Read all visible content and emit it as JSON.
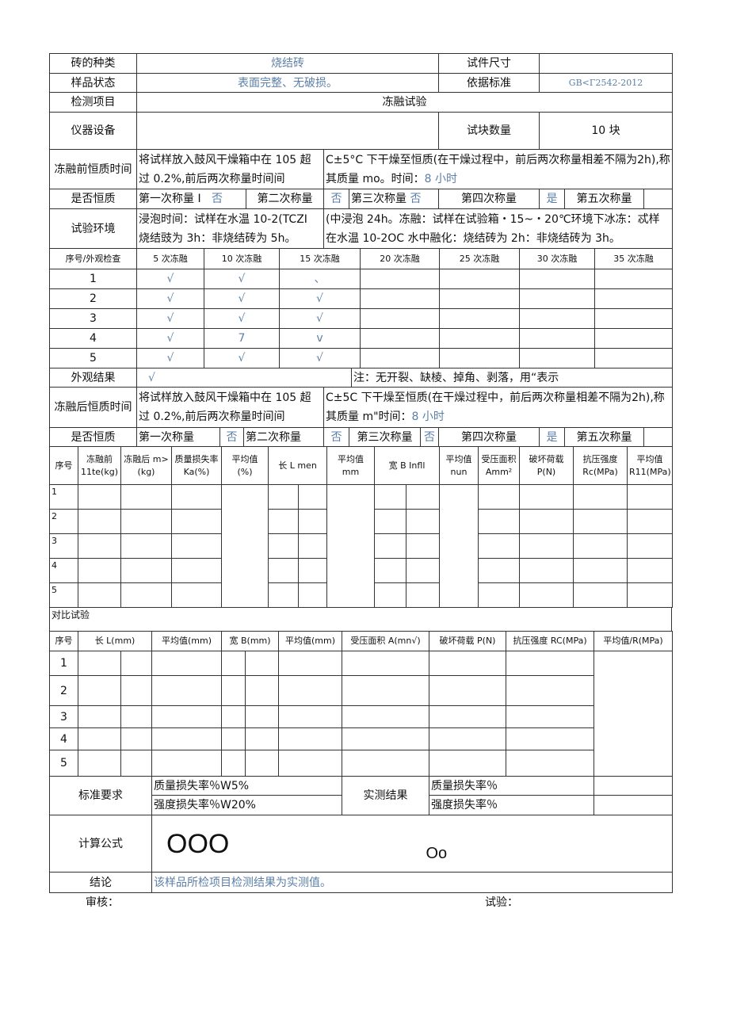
{
  "info": {
    "brick_type_label": "砖的种类",
    "brick_type": "烧结砖",
    "size_label": "试件尺寸",
    "size": "",
    "state_label": "样品状态",
    "state": "表面完整、无破损。",
    "standard_label": "依据标准",
    "standard": "GB<Γ2542-2012",
    "item_label": "检测项目",
    "item": "冻融试验",
    "equipment_label": "仪器设备",
    "equipment": "",
    "count_label": "试块数量",
    "count": "10 块"
  },
  "pre": {
    "label": "冻融前恒质时间",
    "text1": "将试样放入鼓风干燥箱中在 105 超过 0.2%,前后两次称量时间间",
    "text2": "C±5°C 下干燥至恒质(在干燥过程中，前后两次称量相差不隔为2h),称其质量 mo。时间：",
    "time": "8 小时"
  },
  "const1": {
    "label": "是否恒质",
    "w1": "第一次称量 I",
    "v1": "否",
    "w2": "第二次称量",
    "v2": "否",
    "w3": "第三次称量",
    "v3": "否",
    "w4": "第四次称量",
    "v4": "是",
    "w5": "第五次称量",
    "v5": ""
  },
  "env": {
    "label": "试验环境",
    "text1": "浸泡时间：试样在水温 10-2(TCZI 烧结豉为 3h：非烧结砖为 5h。",
    "text2": "(中浸泡 24h。冻融：试样在试验箱・15~・20℃环境下冰冻：忒样在水温 10-2OC 水中融化：烧结砖为 2h：非烧结砖为 3h。"
  },
  "appearance": {
    "headers": [
      "序号/外观检查",
      "5 次冻融",
      "10 次冻融",
      "15 次冻融",
      "20 次冻融",
      "25 次冻融",
      "30 次冻融",
      "35 次冻融"
    ],
    "rows": [
      [
        "1",
        "√",
        "√",
        "、",
        "",
        "",
        "",
        ""
      ],
      [
        "2",
        "√",
        "√",
        "√",
        "",
        "",
        "",
        ""
      ],
      [
        "3",
        "√",
        "√",
        "√",
        "",
        "",
        "",
        ""
      ],
      [
        "4",
        "√",
        "7",
        "v",
        "",
        "",
        "",
        ""
      ],
      [
        "5",
        "√",
        "√",
        "√",
        "",
        "",
        "",
        ""
      ]
    ],
    "result_label": "外观结果",
    "result": "√",
    "note": "注：无开裂、缺棱、掉角、剥落，用“表示"
  },
  "post": {
    "label": "冻融后恒质时间",
    "text1": "将试样放入鼓风干燥箱中在 105 超过 0.2%,前后两次称量时间间",
    "text2": "C±5C 下干燥至恒质(在干燥过程中，前后两次称量相差不隔为2h),称其质量 m\"时间：",
    "time": "8 小时"
  },
  "const2": {
    "label": "是否恒质",
    "w1": "第一次称量",
    "v1": "否",
    "w2": "第二次称量",
    "v2": "否",
    "w3": "第三次称量",
    "v3": "否",
    "w4": "第四次称量",
    "v4": "是",
    "w5": "第五次称量",
    "v5": ""
  },
  "main": {
    "headers": [
      "序号",
      "冻融前 11te(kg)",
      "冻融后 m>(kg)",
      "质量损失率 Ka(%)",
      "平均值 (%)",
      "长 L men",
      "平均值 mm",
      "宽 B Infll",
      "平均值 nun",
      "受压面积 Amm²",
      "破坏荷载 P(N)",
      "抗压强度 Rc(MPa)",
      "平均值 R11(MPa)"
    ],
    "rows": [
      "1",
      "2",
      "3",
      "4",
      "5"
    ]
  },
  "compare": {
    "title": "对比试验",
    "headers": [
      "序号",
      "长 L(mm)",
      "平均值(mm)",
      "宽 B(mm)",
      "平均值(mm)",
      "受压面积 A(mn√)",
      "破坏荷载 P(N)",
      "抗压强度 RC(MPa)",
      "平均值/R(MPa)"
    ],
    "rows": [
      "1",
      "2",
      "3",
      "4",
      "5"
    ]
  },
  "req": {
    "label": "标准要求",
    "mass": "质量损失率％W5%",
    "strength": "强度损失率％W20%",
    "measured_label": "实测结果",
    "m_mass": "质量损失率％",
    "m_strength": "强度损失率％"
  },
  "formula": {
    "label": "计算公式",
    "f1": "OOO",
    "f2": "Oo"
  },
  "conclusion": {
    "label": "结论",
    "text": "该样品所检项目检测结果为实测值。"
  },
  "footer": {
    "review": "审核：",
    "test": "试验："
  }
}
